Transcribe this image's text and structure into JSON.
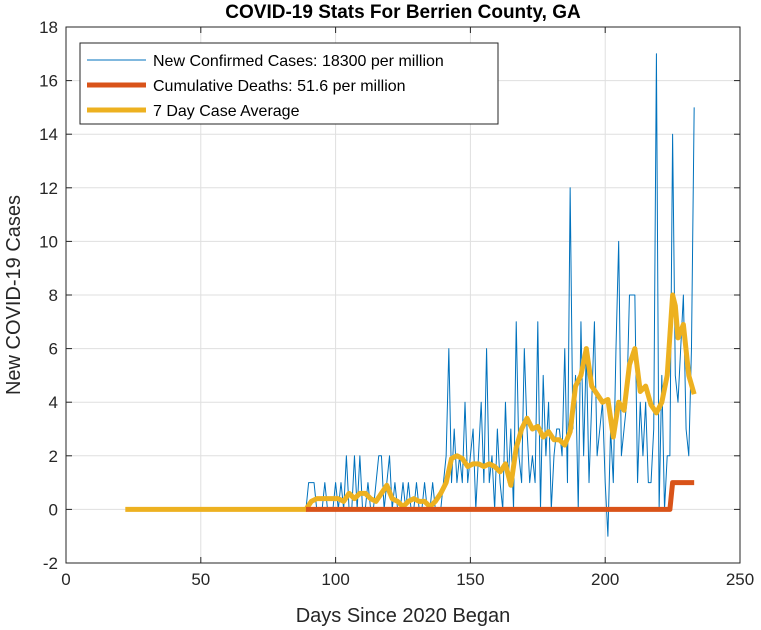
{
  "chart_data": {
    "type": "line",
    "title": "COVID-19 Stats For Berrien County, GA",
    "xlabel": "Days Since 2020 Began",
    "ylabel": "New COVID-19 Cases",
    "xlim": [
      0,
      250
    ],
    "ylim": [
      -2,
      18
    ],
    "xticks": [
      0,
      50,
      100,
      150,
      200,
      250
    ],
    "yticks": [
      -2,
      0,
      2,
      4,
      6,
      8,
      10,
      12,
      14,
      16,
      18
    ],
    "grid": true,
    "legend_position": "top-left",
    "colors": {
      "new_cases": "#0072BD",
      "deaths": "#D95319",
      "avg": "#EDB120"
    },
    "series": [
      {
        "name": "New Confirmed Cases: 18300 per million",
        "x": [
          89,
          90,
          91,
          92,
          93,
          94,
          95,
          96,
          97,
          98,
          99,
          100,
          101,
          102,
          103,
          104,
          105,
          106,
          107,
          108,
          109,
          110,
          111,
          112,
          113,
          114,
          115,
          116,
          117,
          118,
          119,
          120,
          121,
          122,
          123,
          124,
          125,
          126,
          127,
          128,
          129,
          130,
          131,
          132,
          133,
          134,
          135,
          136,
          137,
          138,
          139,
          140,
          141,
          142,
          143,
          144,
          145,
          146,
          147,
          148,
          149,
          150,
          151,
          152,
          153,
          154,
          155,
          156,
          157,
          158,
          159,
          160,
          161,
          162,
          163,
          164,
          165,
          166,
          167,
          168,
          169,
          170,
          171,
          172,
          173,
          174,
          175,
          176,
          177,
          178,
          179,
          180,
          181,
          182,
          183,
          184,
          185,
          186,
          187,
          188,
          189,
          190,
          191,
          192,
          193,
          194,
          195,
          196,
          197,
          198,
          199,
          200,
          201,
          202,
          203,
          204,
          205,
          206,
          207,
          208,
          209,
          210,
          211,
          212,
          213,
          214,
          215,
          216,
          217,
          218,
          219,
          220,
          221,
          222,
          223,
          224,
          225,
          226,
          227,
          228,
          229,
          230,
          231,
          232,
          233
        ],
        "values": [
          0,
          1,
          1,
          1,
          0,
          0,
          0,
          1,
          0,
          0,
          0,
          1,
          0,
          1,
          0,
          2,
          0,
          0,
          2,
          0,
          2,
          0,
          0,
          1,
          0,
          0,
          1,
          2,
          2,
          0,
          1,
          2,
          0,
          1,
          0,
          0,
          1,
          0,
          1,
          0,
          0,
          1,
          0,
          0,
          1,
          0,
          0,
          1,
          0,
          0,
          0,
          1,
          2,
          6,
          1,
          3,
          1,
          2,
          1,
          4,
          1,
          2,
          3,
          0,
          2,
          4,
          1,
          6,
          1,
          2,
          0,
          3,
          1,
          0,
          4,
          1,
          3,
          0,
          7,
          2,
          1,
          6,
          3,
          1,
          2,
          1,
          7,
          0,
          5,
          2,
          4,
          0,
          2,
          3,
          3,
          2,
          6,
          1,
          12,
          3,
          5,
          0,
          7,
          2,
          6,
          1,
          4,
          7,
          2,
          3,
          4,
          1,
          -1,
          3,
          1,
          6,
          10,
          2,
          3,
          4,
          8,
          8,
          8,
          1,
          4,
          2,
          4,
          1,
          1,
          3,
          17,
          0,
          5,
          0,
          2,
          2,
          14,
          5,
          4,
          6,
          8,
          3,
          2,
          6,
          15
        ],
        "linewidth": 1
      },
      {
        "name": "Cumulative Deaths: 51.6 per million",
        "x": [
          89,
          224,
          225,
          233
        ],
        "values": [
          0,
          0,
          1,
          1
        ],
        "linewidth": 5
      },
      {
        "name": "7 Day Case Average",
        "x": [
          22,
          30,
          40,
          50,
          60,
          70,
          80,
          89,
          91,
          93,
          95,
          97,
          99,
          101,
          103,
          105,
          107,
          109,
          111,
          113,
          115,
          117,
          119,
          121,
          123,
          125,
          127,
          129,
          131,
          133,
          135,
          137,
          139,
          141,
          143,
          145,
          147,
          149,
          151,
          153,
          155,
          157,
          159,
          161,
          163,
          165,
          167,
          169,
          171,
          173,
          175,
          177,
          179,
          181,
          183,
          185,
          187,
          189,
          191,
          193,
          195,
          197,
          199,
          201,
          203,
          205,
          207,
          209,
          211,
          213,
          215,
          217,
          219,
          221,
          223,
          225,
          226,
          227,
          229,
          231,
          233
        ],
        "values": [
          0,
          0,
          0,
          0,
          0,
          0,
          0,
          0,
          0.3,
          0.4,
          0.4,
          0.4,
          0.4,
          0.4,
          0.3,
          0.6,
          0.4,
          0.6,
          0.6,
          0.4,
          0.3,
          0.6,
          0.9,
          0.4,
          0.3,
          0.1,
          0.3,
          0.4,
          0.3,
          0.3,
          0.1,
          0.3,
          0.6,
          1.0,
          1.9,
          2.0,
          1.9,
          1.6,
          1.7,
          1.7,
          1.6,
          1.7,
          1.6,
          1.4,
          1.7,
          0.9,
          2.3,
          3.0,
          3.4,
          3.0,
          3.1,
          2.7,
          2.9,
          2.6,
          2.6,
          2.4,
          2.9,
          4.6,
          5.0,
          6.0,
          4.6,
          4.3,
          4.0,
          4.1,
          2.7,
          4.0,
          3.7,
          5.4,
          6.0,
          4.4,
          4.6,
          3.9,
          3.6,
          4.0,
          5.0,
          8.0,
          7.6,
          6.4,
          6.9,
          5.0,
          4.3
        ],
        "linewidth": 5
      }
    ]
  }
}
